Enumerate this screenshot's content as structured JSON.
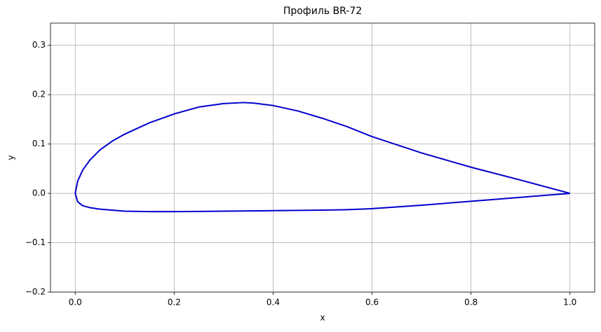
{
  "chart_data": {
    "type": "line",
    "title": "Профиль BR-72",
    "xlabel": "x",
    "ylabel": "y",
    "x": [
      1.0,
      0.9,
      0.8,
      0.7,
      0.6,
      0.55,
      0.5,
      0.45,
      0.4,
      0.36,
      0.34,
      0.3,
      0.25,
      0.2,
      0.15,
      0.1,
      0.075,
      0.05,
      0.03,
      0.015,
      0.005,
      0,
      0.005,
      0.015,
      0.03,
      0.05,
      0.1,
      0.15,
      0.2,
      0.3,
      0.4,
      0.5,
      0.55,
      0.6,
      0.7,
      0.8,
      0.9,
      1.0
    ],
    "series": [
      {
        "color": "#0000cd",
        "values": [
          0,
          0.027,
          0.053,
          0.082,
          0.115,
          0.135,
          0.152,
          0.167,
          0.178,
          0.183,
          0.184,
          0.182,
          0.175,
          0.161,
          0.143,
          0.12,
          0.106,
          0.088,
          0.068,
          0.047,
          0.025,
          0,
          -0.017,
          -0.025,
          -0.029,
          -0.032,
          -0.036,
          -0.037,
          -0.037,
          -0.036,
          -0.035,
          -0.034,
          -0.033,
          -0.031,
          -0.024,
          -0.016,
          -0.008,
          0
        ]
      }
    ],
    "xlim": [
      -0.05,
      1.05
    ],
    "ylim": [
      -0.2,
      0.345
    ],
    "xticks": [
      {
        "value": 0,
        "label": "0.0"
      },
      {
        "value": 0.2,
        "label": "0.2"
      },
      {
        "value": 0.4,
        "label": "0.4"
      },
      {
        "value": 0.6,
        "label": "0.6"
      },
      {
        "value": 0.8,
        "label": "0.8"
      },
      {
        "value": 1,
        "label": "1.0"
      }
    ],
    "yticks": [
      {
        "value": -0.2,
        "label": "−0.2"
      },
      {
        "value": -0.1,
        "label": "−0.1"
      },
      {
        "value": 0,
        "label": "0.0"
      },
      {
        "value": 0.1,
        "label": "0.1"
      },
      {
        "value": 0.2,
        "label": "0.2"
      },
      {
        "value": 0.3,
        "label": "0.3"
      }
    ],
    "grid": true
  }
}
